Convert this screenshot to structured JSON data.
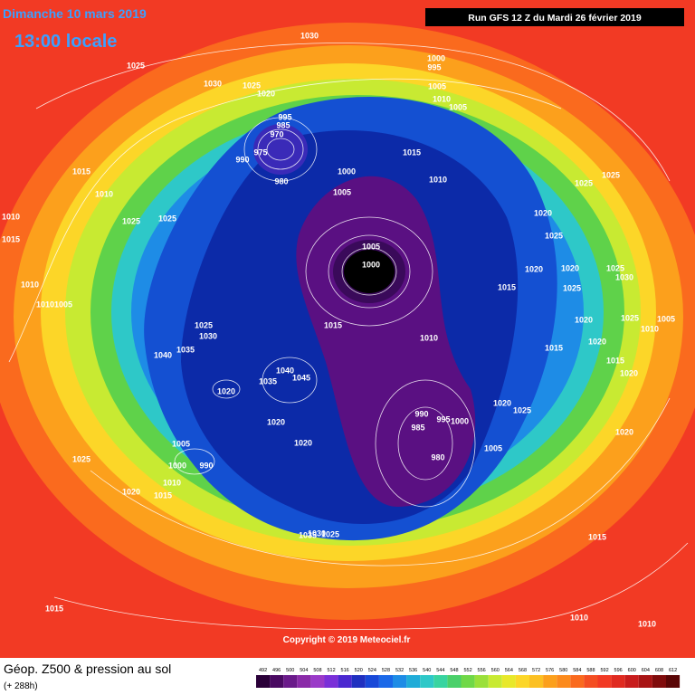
{
  "header": {
    "date": "Dimanche 10 mars 2019",
    "time": "13:00 locale",
    "run": "Run GFS 12 Z du Mardi 26 février 2019"
  },
  "copyright": "Copyright © 2019 Meteociel.fr",
  "footer": {
    "title": "Géop. Z500 & pression au sol",
    "lead": "(+ 288h)"
  },
  "scale": [
    492,
    496,
    500,
    504,
    508,
    512,
    516,
    520,
    524,
    528,
    532,
    536,
    540,
    544,
    548,
    552,
    556,
    560,
    564,
    568,
    572,
    576,
    580,
    584,
    588,
    592,
    596,
    600,
    604,
    608,
    612
  ],
  "isobar_labels": [
    "1030",
    "1025",
    "1030",
    "1025",
    "1020",
    "1000",
    "995",
    "1005",
    "1010",
    "1005",
    "995",
    "985",
    "970",
    "975",
    "990",
    "980",
    "1000",
    "1005",
    "1015",
    "1010",
    "1015",
    "1010",
    "1025",
    "1025",
    "1010",
    "1015",
    "1005",
    "1000",
    "1025",
    "1025",
    "1020",
    "1025",
    "1020",
    "1020",
    "1015",
    "1025",
    "1025",
    "1030",
    "1010",
    "1010",
    "1005",
    "1015",
    "1010",
    "1025",
    "1030",
    "1035",
    "1040",
    "1020",
    "1025",
    "1005",
    "1010",
    "1020",
    "1015",
    "1015",
    "1020",
    "1040",
    "1045",
    "1035",
    "1020",
    "1020",
    "990",
    "985",
    "995",
    "1000",
    "980",
    "1020",
    "1025",
    "1020",
    "1005",
    "1020",
    "1005",
    "1000",
    "990",
    "1010",
    "1020",
    "1015",
    "1025",
    "1030",
    "1035",
    "1025",
    "1015",
    "1015",
    "1010",
    "1010"
  ]
}
